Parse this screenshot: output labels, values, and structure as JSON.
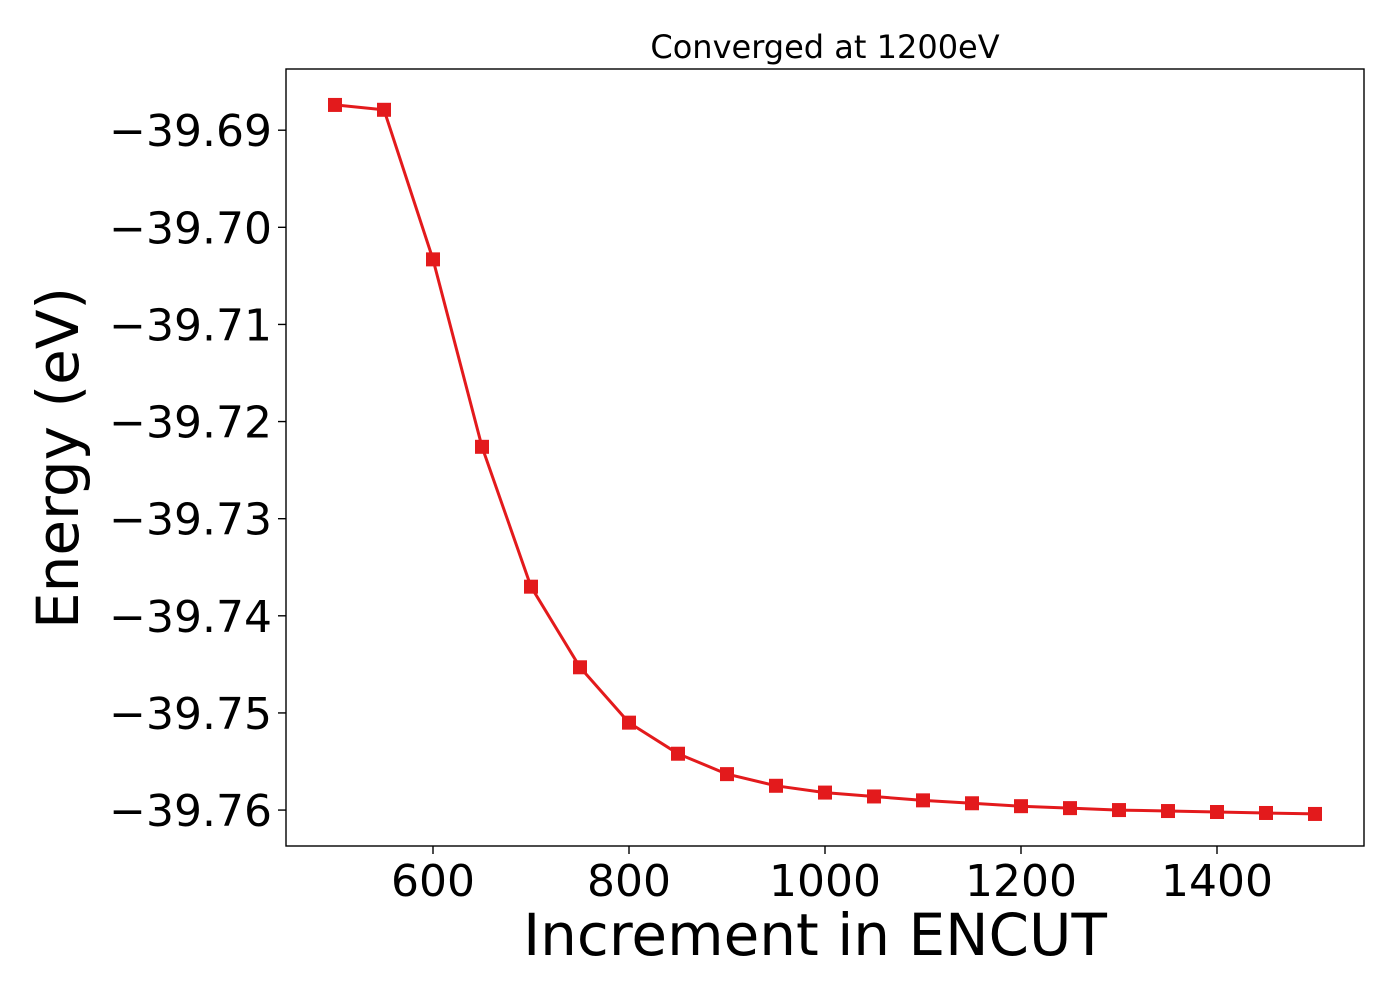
{
  "chart_data": {
    "type": "line",
    "title": "Converged at 1200eV",
    "xlabel": "Increment in ENCUT",
    "ylabel": "Energy (eV)",
    "xlim": [
      450,
      1550
    ],
    "ylim": [
      -39.7637,
      -39.6837
    ],
    "x_ticks": [
      600,
      800,
      1000,
      1200,
      1400
    ],
    "x_tick_labels": [
      "600",
      "800",
      "1000",
      "1200",
      "1400"
    ],
    "y_ticks": [
      -39.69,
      -39.7,
      -39.71,
      -39.72,
      -39.73,
      -39.74,
      -39.75,
      -39.76
    ],
    "y_tick_labels": [
      "−39.69",
      "−39.70",
      "−39.71",
      "−39.72",
      "−39.73",
      "−39.74",
      "−39.75",
      "−39.76"
    ],
    "grid": false,
    "marker": "square",
    "series_color": "#e31a1c",
    "series": [
      {
        "x": [
          500,
          550,
          600,
          650,
          700,
          750,
          800,
          850,
          900,
          950,
          1000,
          1050,
          1100,
          1150,
          1200,
          1250,
          1300,
          1350,
          1400,
          1450,
          1500
        ],
        "values": [
          -39.6874,
          -39.6879,
          -39.7033,
          -39.7226,
          -39.737,
          -39.7453,
          -39.751,
          -39.7542,
          -39.7563,
          -39.7575,
          -39.7582,
          -39.7586,
          -39.759,
          -39.7593,
          -39.7596,
          -39.7598,
          -39.76,
          -39.7601,
          -39.7602,
          -39.7603,
          -39.7604
        ]
      }
    ]
  }
}
